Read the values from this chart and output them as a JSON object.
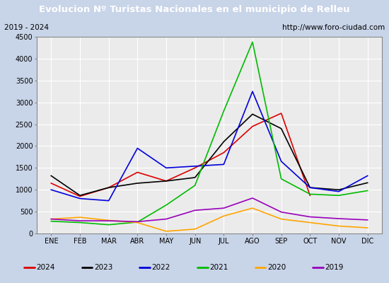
{
  "title": "Evolucion Nº Turistas Nacionales en el municipio de Relleu",
  "subtitle_left": "2019 - 2024",
  "subtitle_right": "http://www.foro-ciudad.com",
  "months": [
    "ENE",
    "FEB",
    "MAR",
    "ABR",
    "MAY",
    "JUN",
    "JUL",
    "AGO",
    "SEP",
    "OCT",
    "NOV",
    "DIC"
  ],
  "series": {
    "2024": {
      "color": "#dd0000",
      "values": [
        1150,
        850,
        1050,
        1400,
        1200,
        1500,
        1850,
        2450,
        2750,
        870,
        null,
        null
      ]
    },
    "2023": {
      "color": "#000000",
      "values": [
        1320,
        870,
        1050,
        1150,
        1200,
        1280,
        2100,
        2730,
        2400,
        1050,
        1000,
        1160
      ]
    },
    "2022": {
      "color": "#0000dd",
      "values": [
        1000,
        800,
        750,
        1950,
        1500,
        1540,
        1580,
        3250,
        1650,
        1050,
        960,
        1320
      ]
    },
    "2021": {
      "color": "#00bb00",
      "values": [
        280,
        250,
        200,
        260,
        650,
        1100,
        2800,
        4380,
        1250,
        900,
        870,
        980
      ]
    },
    "2020": {
      "color": "#ffa500",
      "values": [
        330,
        370,
        300,
        250,
        50,
        100,
        400,
        580,
        330,
        250,
        170,
        130
      ]
    },
    "2019": {
      "color": "#9900bb",
      "values": [
        330,
        290,
        290,
        270,
        330,
        530,
        580,
        810,
        490,
        380,
        340,
        310
      ]
    }
  },
  "ylim": [
    0,
    4500
  ],
  "yticks": [
    0,
    500,
    1000,
    1500,
    2000,
    2500,
    3000,
    3500,
    4000,
    4500
  ],
  "title_bg_color": "#4472c4",
  "title_fg_color": "#ffffff",
  "plot_bg_color": "#ebebeb",
  "outer_bg_color": "#c8d4e8",
  "grid_color": "#ffffff",
  "border_color": "#888888",
  "legend_order": [
    "2024",
    "2023",
    "2022",
    "2021",
    "2020",
    "2019"
  ]
}
